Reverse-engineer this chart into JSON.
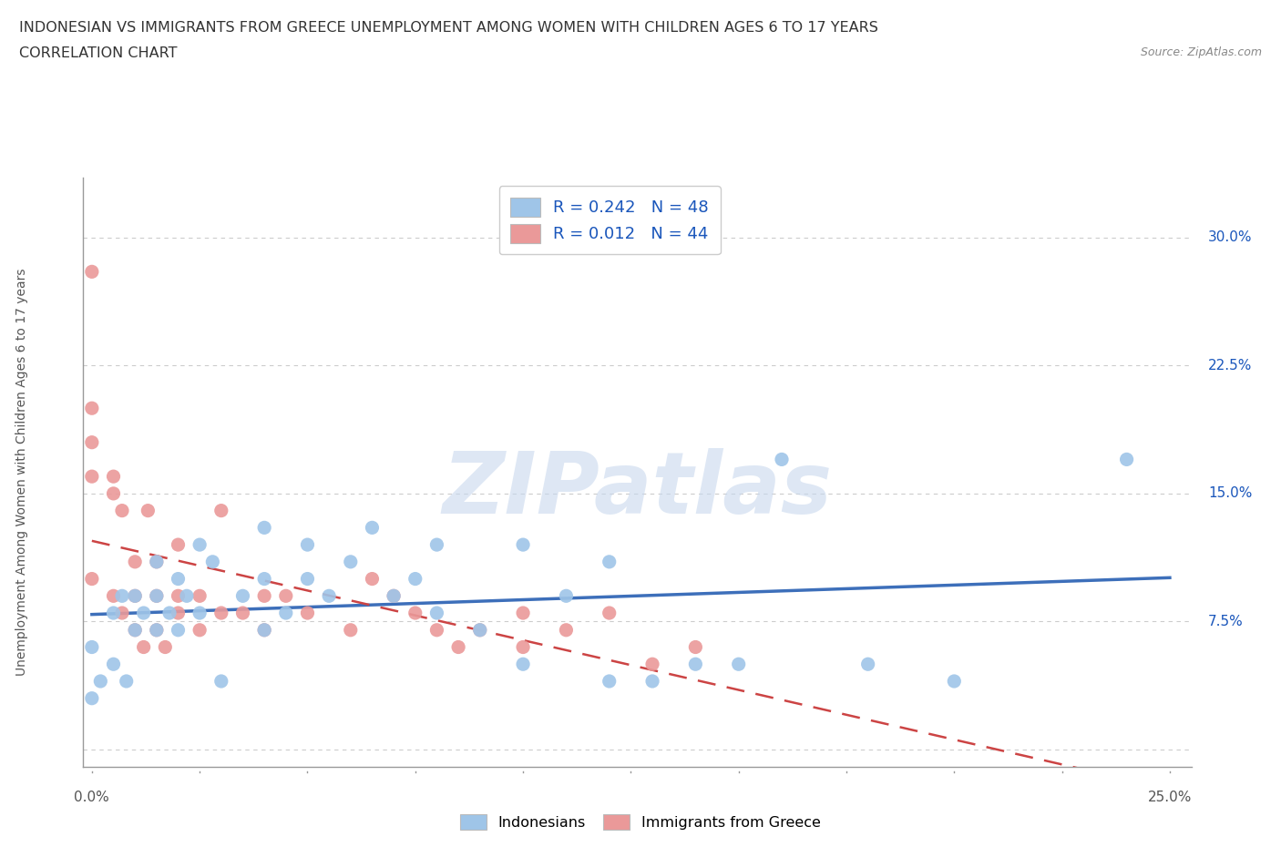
{
  "title_line1": "INDONESIAN VS IMMIGRANTS FROM GREECE UNEMPLOYMENT AMONG WOMEN WITH CHILDREN AGES 6 TO 17 YEARS",
  "title_line2": "CORRELATION CHART",
  "source_text": "Source: ZipAtlas.com",
  "ylabel": "Unemployment Among Women with Children Ages 6 to 17 years",
  "xlim": [
    -0.002,
    0.255
  ],
  "ylim": [
    -0.01,
    0.335
  ],
  "yticks_right": [
    0.0,
    0.075,
    0.15,
    0.225,
    0.3
  ],
  "ytick_labels_right": [
    "",
    "7.5%",
    "15.0%",
    "22.5%",
    "30.0%"
  ],
  "xtick_vals": [
    0.0,
    0.025,
    0.05,
    0.075,
    0.1,
    0.125,
    0.15,
    0.175,
    0.2,
    0.225,
    0.25
  ],
  "color_blue": "#9fc5e8",
  "color_pink": "#ea9999",
  "color_blue_line": "#3d6fba",
  "color_pink_line": "#cc4444",
  "color_text_blue": "#1a56bb",
  "watermark_text": "ZIPatlas",
  "R_blue": 0.242,
  "N_blue": 48,
  "R_pink": 0.012,
  "N_pink": 44,
  "indonesian_x": [
    0.0,
    0.0,
    0.002,
    0.005,
    0.005,
    0.007,
    0.008,
    0.01,
    0.01,
    0.012,
    0.015,
    0.015,
    0.015,
    0.018,
    0.02,
    0.02,
    0.022,
    0.025,
    0.025,
    0.028,
    0.03,
    0.035,
    0.04,
    0.04,
    0.04,
    0.045,
    0.05,
    0.05,
    0.055,
    0.06,
    0.065,
    0.07,
    0.075,
    0.08,
    0.08,
    0.09,
    0.1,
    0.1,
    0.11,
    0.12,
    0.12,
    0.13,
    0.14,
    0.15,
    0.16,
    0.18,
    0.2,
    0.24
  ],
  "indonesian_y": [
    0.06,
    0.03,
    0.04,
    0.08,
    0.05,
    0.09,
    0.04,
    0.07,
    0.09,
    0.08,
    0.09,
    0.07,
    0.11,
    0.08,
    0.1,
    0.07,
    0.09,
    0.08,
    0.12,
    0.11,
    0.04,
    0.09,
    0.1,
    0.07,
    0.13,
    0.08,
    0.1,
    0.12,
    0.09,
    0.11,
    0.13,
    0.09,
    0.1,
    0.08,
    0.12,
    0.07,
    0.05,
    0.12,
    0.09,
    0.11,
    0.04,
    0.04,
    0.05,
    0.05,
    0.17,
    0.05,
    0.04,
    0.17
  ],
  "greece_x": [
    0.0,
    0.0,
    0.0,
    0.0,
    0.0,
    0.005,
    0.005,
    0.005,
    0.007,
    0.007,
    0.01,
    0.01,
    0.01,
    0.012,
    0.013,
    0.015,
    0.015,
    0.015,
    0.017,
    0.02,
    0.02,
    0.02,
    0.025,
    0.025,
    0.03,
    0.03,
    0.035,
    0.04,
    0.04,
    0.045,
    0.05,
    0.06,
    0.065,
    0.07,
    0.075,
    0.08,
    0.085,
    0.09,
    0.1,
    0.1,
    0.11,
    0.12,
    0.13,
    0.14
  ],
  "greece_y": [
    0.28,
    0.2,
    0.18,
    0.16,
    0.1,
    0.09,
    0.15,
    0.16,
    0.14,
    0.08,
    0.07,
    0.09,
    0.11,
    0.06,
    0.14,
    0.07,
    0.09,
    0.11,
    0.06,
    0.08,
    0.09,
    0.12,
    0.07,
    0.09,
    0.08,
    0.14,
    0.08,
    0.07,
    0.09,
    0.09,
    0.08,
    0.07,
    0.1,
    0.09,
    0.08,
    0.07,
    0.06,
    0.07,
    0.06,
    0.08,
    0.07,
    0.08,
    0.05,
    0.06
  ],
  "background_color": "#ffffff",
  "grid_color": "#cccccc",
  "grid_linestyle": "--"
}
